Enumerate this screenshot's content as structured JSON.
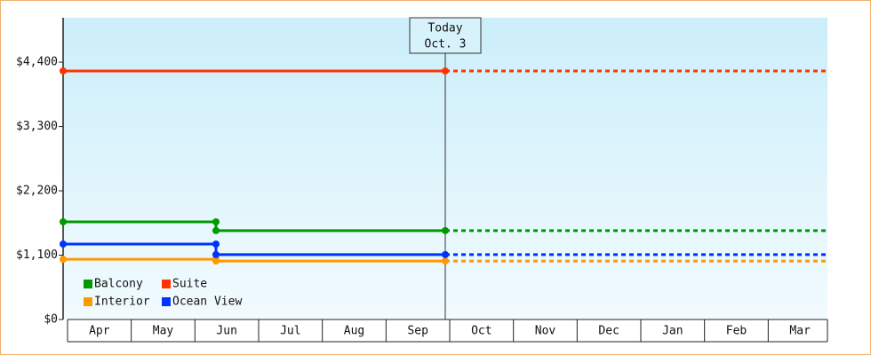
{
  "chart_data": {
    "type": "line",
    "categories": [
      "Apr",
      "May",
      "Jun",
      "Jul",
      "Aug",
      "Sep",
      "Oct",
      "Nov",
      "Dec",
      "Jan",
      "Feb",
      "Mar"
    ],
    "xlim": [
      0,
      12
    ],
    "ylim": [
      0,
      5160
    ],
    "yticks": [
      {
        "value": 0,
        "label": "$0"
      },
      {
        "value": 1100,
        "label": "$1,100"
      },
      {
        "value": 2200,
        "label": "$2,200"
      },
      {
        "value": 3300,
        "label": "$3,300"
      },
      {
        "value": 4400,
        "label": "$4,400"
      }
    ],
    "today": {
      "x": 6.0,
      "label": [
        "Today",
        "Oct. 3"
      ]
    },
    "series": [
      {
        "name": "Balcony",
        "color": "#009900",
        "x": [
          0,
          2.4,
          2.4,
          6.0
        ],
        "values": [
          1670,
          1670,
          1520,
          1520
        ]
      },
      {
        "name": "Suite",
        "color": "#ff3300",
        "x": [
          0,
          6.0
        ],
        "values": [
          4250,
          4250
        ]
      },
      {
        "name": "Interior",
        "color": "#ff9900",
        "x": [
          0,
          2.4,
          2.4,
          6.0
        ],
        "values": [
          1030,
          1030,
          1000,
          1000
        ]
      },
      {
        "name": "Ocean View",
        "color": "#0033ff",
        "x": [
          0,
          2.4,
          2.4,
          6.0
        ],
        "values": [
          1290,
          1290,
          1110,
          1110
        ]
      }
    ]
  }
}
